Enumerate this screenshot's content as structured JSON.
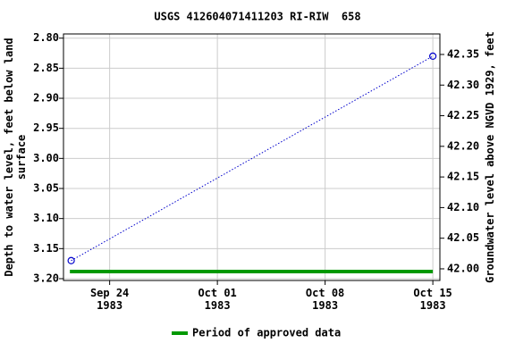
{
  "chart_data": {
    "type": "line",
    "title": "USGS 412604071411203 RI-RIW  658",
    "ylabel": "Depth to water level, feet below land surface",
    "y2label": "Groundwater level above NGVD 1929, feet",
    "x": [
      "1983-09-21T12:00",
      "1983-10-15"
    ],
    "series": [
      {
        "name": "USGS 412604071411203 RI-RIW  658",
        "color": "#0000cc",
        "values": [
          3.17,
          2.83
        ]
      }
    ],
    "xlim": [
      "1983-09-21",
      "1983-10-15T11:00"
    ],
    "xticks": [
      {
        "value": "1983-09-24",
        "label": "Sep 24\n1983"
      },
      {
        "value": "1983-10-01",
        "label": "Oct 01\n1983"
      },
      {
        "value": "1983-10-08",
        "label": "Oct 08\n1983"
      },
      {
        "value": "1983-10-15",
        "label": "Oct 15\n1983"
      }
    ],
    "ylim": [
      3.203,
      2.793
    ],
    "yticks": [
      {
        "value": 2.8,
        "label": "2.80"
      },
      {
        "value": 2.85,
        "label": "2.85"
      },
      {
        "value": 2.9,
        "label": "2.90"
      },
      {
        "value": 2.95,
        "label": "2.95"
      },
      {
        "value": 3.0,
        "label": "3.00"
      },
      {
        "value": 3.05,
        "label": "3.05"
      },
      {
        "value": 3.1,
        "label": "3.10"
      },
      {
        "value": 3.15,
        "label": "3.15"
      },
      {
        "value": 3.2,
        "label": "3.20"
      }
    ],
    "y2lim": [
      41.981,
      42.3835
    ],
    "y2ticks": [
      {
        "value": 42.0,
        "label": "42.00"
      },
      {
        "value": 42.05,
        "label": "42.05"
      },
      {
        "value": 42.1,
        "label": "42.10"
      },
      {
        "value": 42.15,
        "label": "42.15"
      },
      {
        "value": 42.2,
        "label": "42.20"
      },
      {
        "value": 42.25,
        "label": "42.25"
      },
      {
        "value": 42.3,
        "label": "42.30"
      },
      {
        "value": 42.35,
        "label": "42.35"
      }
    ],
    "grid": true,
    "approved_period": {
      "name": "Period of approved data",
      "color": "#009900",
      "start": "1983-09-21T10:00",
      "end": "1983-10-15"
    }
  }
}
